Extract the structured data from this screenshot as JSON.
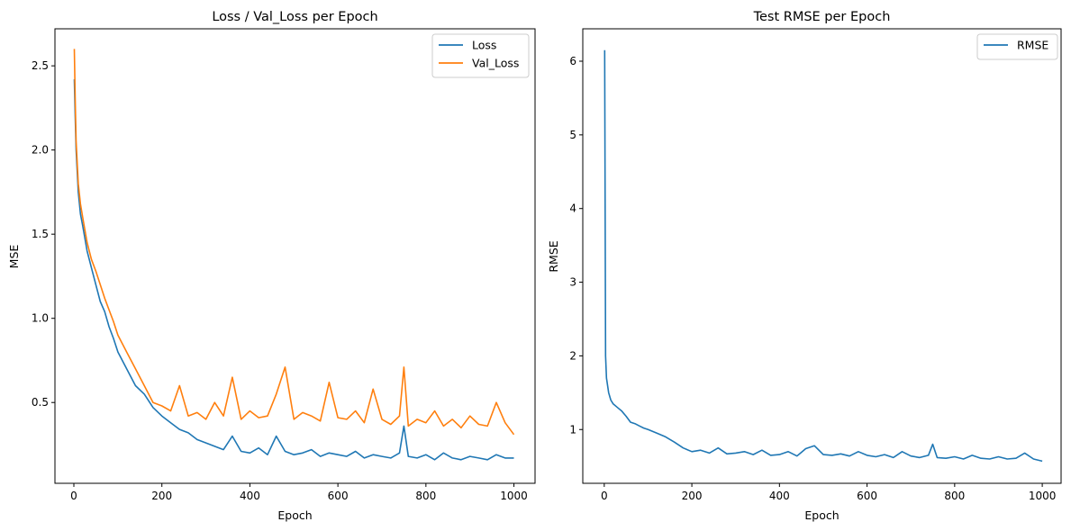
{
  "chart_data": [
    {
      "type": "line",
      "title": "Loss / Val_Loss per Epoch",
      "xlabel": "Epoch",
      "ylabel": "MSE",
      "xlim": [
        -43,
        1048
      ],
      "ylim": [
        0.02,
        2.72
      ],
      "xticks": [
        0,
        200,
        400,
        600,
        800,
        1000
      ],
      "yticks": [
        0.5,
        1.0,
        1.5,
        2.0,
        2.5
      ],
      "ytick_labels": [
        "0.5",
        "1.0",
        "1.5",
        "2.0",
        "2.5"
      ],
      "grid": false,
      "legend": "top-right",
      "x": [
        1,
        3,
        5,
        10,
        15,
        20,
        30,
        40,
        50,
        60,
        70,
        80,
        90,
        100,
        120,
        140,
        160,
        180,
        200,
        220,
        240,
        260,
        280,
        300,
        320,
        340,
        360,
        380,
        400,
        420,
        440,
        460,
        480,
        500,
        520,
        540,
        560,
        580,
        600,
        620,
        640,
        660,
        680,
        700,
        720,
        740,
        750,
        760,
        780,
        800,
        820,
        840,
        860,
        880,
        900,
        920,
        940,
        960,
        980,
        1000
      ],
      "series": [
        {
          "name": "Loss",
          "color": "#1f77b4",
          "values": [
            2.42,
            2.2,
            2.0,
            1.75,
            1.62,
            1.55,
            1.4,
            1.3,
            1.2,
            1.1,
            1.04,
            0.95,
            0.88,
            0.8,
            0.7,
            0.6,
            0.55,
            0.47,
            0.42,
            0.38,
            0.34,
            0.32,
            0.28,
            0.26,
            0.24,
            0.22,
            0.3,
            0.21,
            0.2,
            0.23,
            0.19,
            0.3,
            0.21,
            0.19,
            0.2,
            0.22,
            0.18,
            0.2,
            0.19,
            0.18,
            0.21,
            0.17,
            0.19,
            0.18,
            0.17,
            0.2,
            0.36,
            0.18,
            0.17,
            0.19,
            0.16,
            0.2,
            0.17,
            0.16,
            0.18,
            0.17,
            0.16,
            0.19,
            0.17,
            0.17
          ]
        },
        {
          "name": "Val_Loss",
          "color": "#ff7f0e",
          "values": [
            2.6,
            2.3,
            2.05,
            1.8,
            1.68,
            1.6,
            1.45,
            1.35,
            1.28,
            1.2,
            1.12,
            1.05,
            0.98,
            0.9,
            0.8,
            0.7,
            0.6,
            0.5,
            0.48,
            0.45,
            0.6,
            0.42,
            0.44,
            0.4,
            0.5,
            0.42,
            0.65,
            0.4,
            0.45,
            0.41,
            0.42,
            0.55,
            0.71,
            0.4,
            0.44,
            0.42,
            0.39,
            0.62,
            0.41,
            0.4,
            0.45,
            0.38,
            0.58,
            0.4,
            0.37,
            0.42,
            0.71,
            0.36,
            0.4,
            0.38,
            0.45,
            0.36,
            0.4,
            0.35,
            0.42,
            0.37,
            0.36,
            0.5,
            0.38,
            0.31
          ]
        }
      ]
    },
    {
      "type": "line",
      "title": "Test RMSE per Epoch",
      "xlabel": "Epoch",
      "ylabel": "RMSE",
      "xlim": [
        -49,
        1043
      ],
      "ylim": [
        0.27,
        6.44
      ],
      "xticks": [
        0,
        200,
        400,
        600,
        800,
        1000
      ],
      "yticks": [
        1,
        2,
        3,
        4,
        5,
        6
      ],
      "ytick_labels": [
        "1",
        "2",
        "3",
        "4",
        "5",
        "6"
      ],
      "grid": false,
      "legend": "top-right",
      "x": [
        1,
        3,
        5,
        10,
        15,
        20,
        30,
        40,
        50,
        60,
        70,
        80,
        90,
        100,
        120,
        140,
        160,
        180,
        200,
        220,
        240,
        260,
        280,
        300,
        320,
        340,
        360,
        380,
        400,
        420,
        440,
        460,
        480,
        500,
        520,
        540,
        560,
        580,
        600,
        620,
        640,
        660,
        680,
        700,
        720,
        740,
        750,
        760,
        780,
        800,
        820,
        840,
        860,
        880,
        900,
        920,
        940,
        960,
        980,
        1000
      ],
      "series": [
        {
          "name": "RMSE",
          "color": "#1f77b4",
          "values": [
            6.15,
            2.0,
            1.7,
            1.5,
            1.4,
            1.35,
            1.3,
            1.25,
            1.18,
            1.1,
            1.08,
            1.05,
            1.02,
            1.0,
            0.95,
            0.9,
            0.83,
            0.75,
            0.7,
            0.72,
            0.68,
            0.75,
            0.67,
            0.68,
            0.7,
            0.66,
            0.72,
            0.65,
            0.66,
            0.7,
            0.64,
            0.74,
            0.78,
            0.66,
            0.65,
            0.67,
            0.64,
            0.7,
            0.65,
            0.63,
            0.66,
            0.62,
            0.7,
            0.64,
            0.62,
            0.65,
            0.8,
            0.62,
            0.61,
            0.63,
            0.6,
            0.65,
            0.61,
            0.6,
            0.63,
            0.6,
            0.61,
            0.68,
            0.6,
            0.57
          ]
        }
      ]
    }
  ]
}
